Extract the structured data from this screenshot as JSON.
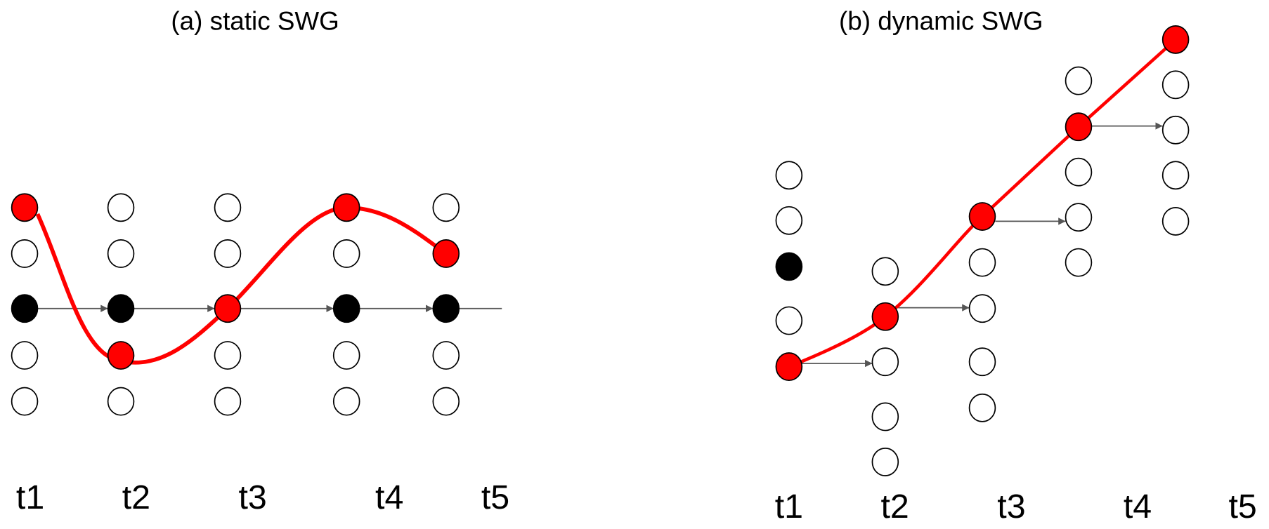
{
  "panels": [
    {
      "title": "(a) static SWG",
      "time_labels": [
        "t1",
        "t2",
        "t3",
        "t4",
        "t5"
      ]
    },
    {
      "title": "(b) dynamic SWG",
      "time_labels": [
        "t1",
        "t2",
        "t3",
        "t4",
        "t5"
      ]
    }
  ]
}
